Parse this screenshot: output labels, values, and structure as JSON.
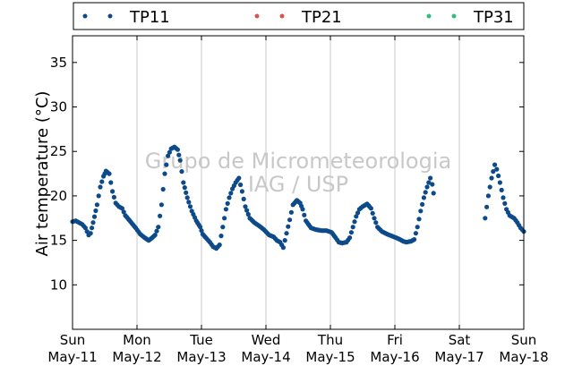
{
  "watermark": {
    "line1": "Grupo de Micrometeorologia",
    "line2": "IAG / USP"
  },
  "legend": {
    "items": [
      {
        "label": "TP11",
        "color": "#0d4a8a"
      },
      {
        "label": "TP21",
        "color": "#d9534f"
      },
      {
        "label": "TP31",
        "color": "#2ebf7a"
      }
    ]
  },
  "chart_data": {
    "type": "scatter",
    "title": "",
    "xlabel": "",
    "ylabel": "Air temperature (°C)",
    "ylim": [
      5,
      38
    ],
    "xlim": [
      0,
      7
    ],
    "yticks": [
      10,
      15,
      20,
      25,
      30,
      35
    ],
    "xticks": [
      {
        "value": 0,
        "day": "Sun",
        "date": "May-11"
      },
      {
        "value": 1,
        "day": "Mon",
        "date": "May-12"
      },
      {
        "value": 2,
        "day": "Tue",
        "date": "May-13"
      },
      {
        "value": 3,
        "day": "Wed",
        "date": "May-14"
      },
      {
        "value": 4,
        "day": "Thu",
        "date": "May-15"
      },
      {
        "value": 5,
        "day": "Fri",
        "date": "May-16"
      },
      {
        "value": 6,
        "day": "Sat",
        "date": "May-17"
      },
      {
        "value": 7,
        "day": "Sun",
        "date": "May-18"
      }
    ],
    "grid": "vertical",
    "legend_position": "top",
    "series": [
      {
        "name": "TP11",
        "color": "#0d4a8a",
        "points": [
          [
            0.0,
            17.1
          ],
          [
            0.05,
            17.2
          ],
          [
            0.1,
            17.0
          ],
          [
            0.15,
            16.8
          ],
          [
            0.2,
            16.4
          ],
          [
            0.25,
            15.6
          ],
          [
            0.28,
            15.8
          ],
          [
            0.32,
            17.0
          ],
          [
            0.38,
            19.0
          ],
          [
            0.43,
            21.0
          ],
          [
            0.48,
            22.2
          ],
          [
            0.52,
            22.8
          ],
          [
            0.57,
            22.5
          ],
          [
            0.62,
            20.5
          ],
          [
            0.67,
            19.2
          ],
          [
            0.72,
            18.8
          ],
          [
            0.77,
            18.6
          ],
          [
            0.82,
            17.8
          ],
          [
            0.9,
            17.1
          ],
          [
            0.98,
            16.4
          ],
          [
            1.05,
            15.7
          ],
          [
            1.12,
            15.3
          ],
          [
            1.18,
            15.0
          ],
          [
            1.22,
            15.2
          ],
          [
            1.28,
            15.6
          ],
          [
            1.33,
            16.5
          ],
          [
            1.38,
            19.0
          ],
          [
            1.43,
            22.5
          ],
          [
            1.48,
            24.5
          ],
          [
            1.53,
            25.3
          ],
          [
            1.58,
            25.5
          ],
          [
            1.63,
            25.2
          ],
          [
            1.67,
            24.0
          ],
          [
            1.72,
            21.5
          ],
          [
            1.78,
            19.8
          ],
          [
            1.85,
            18.3
          ],
          [
            1.92,
            17.2
          ],
          [
            1.98,
            16.5
          ],
          [
            2.02,
            15.7
          ],
          [
            2.08,
            15.2
          ],
          [
            2.13,
            14.8
          ],
          [
            2.18,
            14.3
          ],
          [
            2.23,
            14.1
          ],
          [
            2.28,
            14.5
          ],
          [
            2.33,
            16.5
          ],
          [
            2.38,
            18.5
          ],
          [
            2.43,
            19.8
          ],
          [
            2.48,
            20.8
          ],
          [
            2.53,
            21.5
          ],
          [
            2.58,
            22.0
          ],
          [
            2.63,
            20.5
          ],
          [
            2.68,
            18.8
          ],
          [
            2.75,
            17.5
          ],
          [
            2.82,
            17.0
          ],
          [
            2.9,
            16.6
          ],
          [
            2.97,
            16.2
          ],
          [
            3.05,
            15.6
          ],
          [
            3.12,
            15.4
          ],
          [
            3.17,
            15.0
          ],
          [
            3.22,
            14.8
          ],
          [
            3.27,
            14.2
          ],
          [
            3.32,
            15.8
          ],
          [
            3.37,
            17.3
          ],
          [
            3.42,
            19.0
          ],
          [
            3.48,
            19.5
          ],
          [
            3.53,
            19.2
          ],
          [
            3.57,
            18.5
          ],
          [
            3.62,
            17.2
          ],
          [
            3.7,
            16.4
          ],
          [
            3.78,
            16.2
          ],
          [
            3.86,
            16.1
          ],
          [
            3.94,
            16.1
          ],
          [
            4.02,
            15.9
          ],
          [
            4.08,
            15.3
          ],
          [
            4.13,
            14.8
          ],
          [
            4.18,
            14.7
          ],
          [
            4.25,
            14.8
          ],
          [
            4.3,
            15.3
          ],
          [
            4.35,
            16.5
          ],
          [
            4.4,
            17.7
          ],
          [
            4.45,
            18.5
          ],
          [
            4.5,
            18.8
          ],
          [
            4.57,
            19.1
          ],
          [
            4.63,
            18.6
          ],
          [
            4.68,
            17.5
          ],
          [
            4.73,
            16.5
          ],
          [
            4.8,
            16.0
          ],
          [
            4.88,
            15.7
          ],
          [
            4.95,
            15.5
          ],
          [
            5.02,
            15.3
          ],
          [
            5.08,
            15.1
          ],
          [
            5.13,
            14.9
          ],
          [
            5.18,
            14.8
          ],
          [
            5.25,
            14.9
          ],
          [
            5.3,
            15.1
          ],
          [
            5.35,
            16.5
          ],
          [
            5.4,
            18.3
          ],
          [
            5.45,
            19.8
          ],
          [
            5.5,
            21.0
          ],
          [
            5.55,
            22.0
          ],
          [
            5.58,
            21.3
          ],
          [
            5.6,
            20.3
          ],
          [
            6.4,
            17.5
          ],
          [
            6.45,
            20.0
          ],
          [
            6.5,
            22.0
          ],
          [
            6.55,
            23.5
          ],
          [
            6.58,
            23.0
          ],
          [
            6.63,
            21.5
          ],
          [
            6.68,
            19.8
          ],
          [
            6.73,
            18.5
          ],
          [
            6.78,
            17.8
          ],
          [
            6.85,
            17.5
          ],
          [
            6.9,
            17.0
          ],
          [
            6.95,
            16.4
          ],
          [
            7.0,
            16.0
          ]
        ]
      },
      {
        "name": "TP21",
        "color": "#d9534f",
        "points": []
      },
      {
        "name": "TP31",
        "color": "#2ebf7a",
        "points": []
      }
    ]
  }
}
